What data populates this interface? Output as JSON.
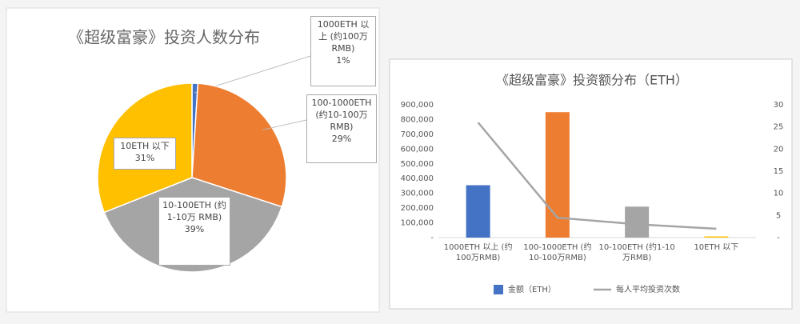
{
  "chart_data": [
    {
      "type": "pie",
      "title": "《超级富豪》投资人数分布",
      "categories": [
        "1000ETH 以上 (约100万 RMB)",
        "100-1000ETH (约10-100万 RMB)",
        "10-100ETH (约1-10万 RMB)",
        "10ETH 以下"
      ],
      "values": [
        1,
        29,
        39,
        31
      ],
      "value_labels": [
        "1%",
        "29%",
        "39%",
        "31%"
      ],
      "colors": [
        "#4472c4",
        "#ed7d31",
        "#a5a5a5",
        "#ffc000"
      ]
    },
    {
      "type": "bar",
      "title": "《超级富豪》投资额分布（ETH）",
      "categories": [
        "1000ETH 以上 (约100万RMB)",
        "100-1000ETH (约10-100万RMB)",
        "10-100ETH (约1-10万RMB)",
        "10ETH 以下"
      ],
      "series": [
        {
          "name": "金额（ETH）",
          "color": "#4472c4",
          "colors": [
            "#4472c4",
            "#ed7d31",
            "#a5a5a5",
            "#ffc000"
          ],
          "values": [
            355000,
            850000,
            210000,
            8000
          ]
        },
        {
          "name": "每人平均投资次数",
          "color": "#a5a5a5",
          "type": "line",
          "axis": "y2",
          "values": [
            26,
            4.5,
            3,
            2
          ]
        }
      ],
      "ylim": [
        0,
        900000
      ],
      "yticks": [
        {
          "value": 0,
          "label": "-"
        },
        {
          "value": 100000,
          "label": "100,000"
        },
        {
          "value": 200000,
          "label": "200,000"
        },
        {
          "value": 300000,
          "label": "300,000"
        },
        {
          "value": 400000,
          "label": "400,000"
        },
        {
          "value": 500000,
          "label": "500,000"
        },
        {
          "value": 600000,
          "label": "600,000"
        },
        {
          "value": 700000,
          "label": "700,000"
        },
        {
          "value": 800000,
          "label": "800,000"
        },
        {
          "value": 900000,
          "label": "900,000"
        }
      ],
      "y2lim": [
        0,
        30
      ],
      "y2ticks": [
        {
          "value": 0,
          "label": "-"
        },
        5,
        10,
        15,
        20,
        25,
        30
      ],
      "legend": "bottom"
    }
  ]
}
